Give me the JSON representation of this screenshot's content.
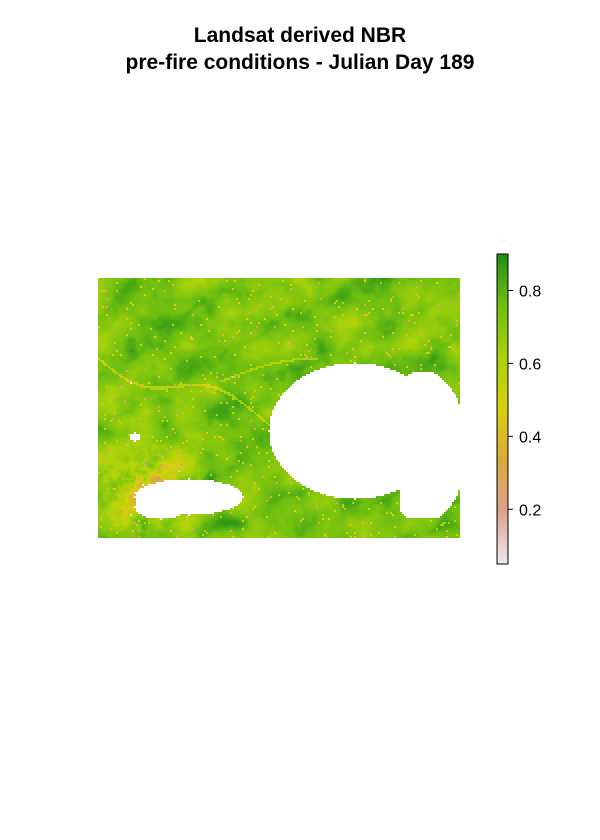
{
  "title_lines": [
    "Landsat derived NBR",
    "pre-fire conditions - Julian Day 189"
  ],
  "legend": {
    "ticks": [
      {
        "value": 0.8,
        "label": "0.8"
      },
      {
        "value": 0.6,
        "label": "0.6"
      },
      {
        "value": 0.4,
        "label": "0.4"
      },
      {
        "value": 0.2,
        "label": "0.2"
      }
    ],
    "min": 0.05,
    "max": 0.9,
    "palette": [
      "#f2e8ed",
      "#dca28f",
      "#d9a93b",
      "#d9cf0f",
      "#a8d20a",
      "#6fbf10",
      "#1f8f17"
    ]
  },
  "raster": {
    "cols": 181,
    "rows": 130,
    "dominant_value_range": [
      0.55,
      0.85
    ],
    "nodata_color": "#ffffff"
  }
}
